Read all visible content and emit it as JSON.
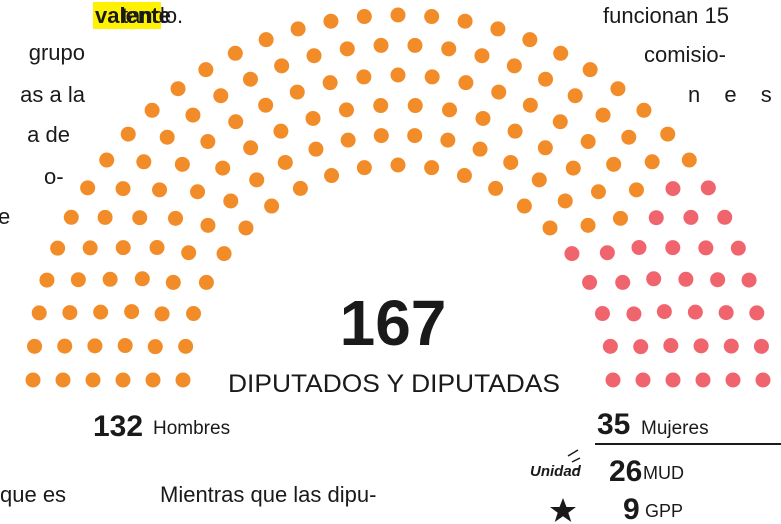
{
  "chart_data": {
    "type": "parliament",
    "title": "167",
    "subtitle": "DIPUTADOS Y DIPUTADAS",
    "series": [
      {
        "name": "Hombres",
        "color": "#f28c28",
        "values": [
          132
        ]
      },
      {
        "name": "Mujeres",
        "color": "#f0646e",
        "values": [
          35
        ]
      }
    ],
    "parties": [
      {
        "logo": "Unidad",
        "name": "MUD",
        "color": "#2a4d9b",
        "value": 26
      },
      {
        "name": "GPP",
        "color": "#e0262b",
        "value": 9
      }
    ]
  },
  "text": {
    "left": [
      "valente",
      "grupo",
      "as a la",
      "a de",
      "o-",
      "e"
    ],
    "center": "tando.",
    "right": [
      "funcionan 15",
      "comisio-",
      "n e s"
    ],
    "bottom": [
      "que es",
      "Mientras que las dipu-"
    ]
  }
}
